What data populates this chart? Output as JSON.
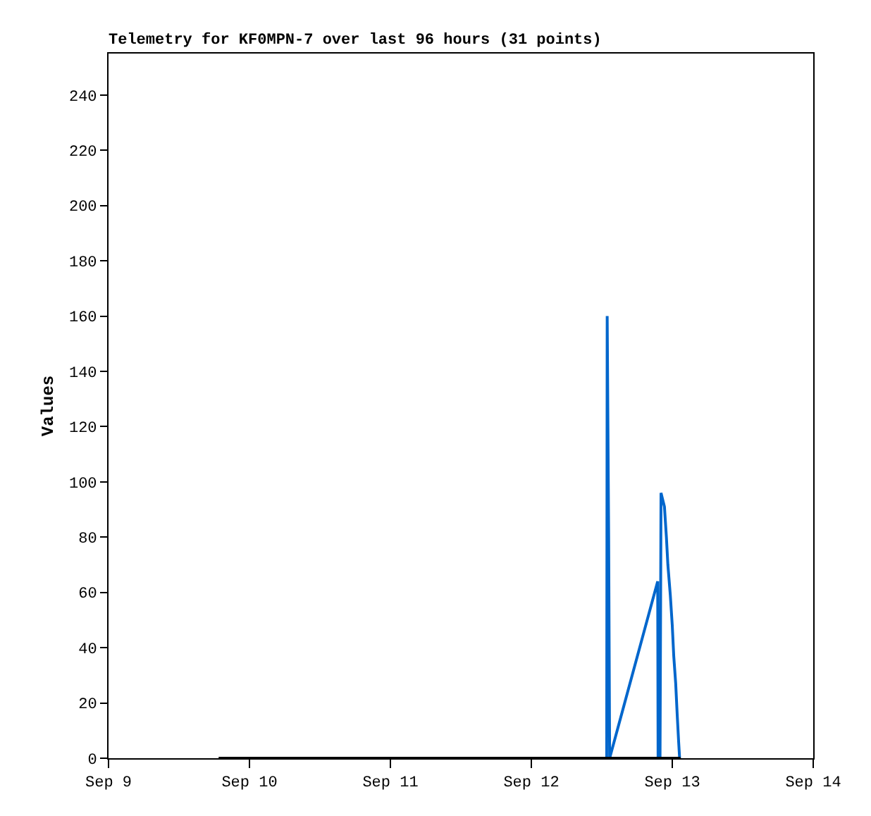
{
  "chart_data": {
    "type": "line",
    "title": "Telemetry for KF0MPN-7 over last 96 hours (31 points)",
    "ylabel": "Values",
    "series": [
      {
        "color": "#0066cc",
        "x": [
          "--09-12T12:50",
          "--09-12T12:55",
          "--09-12T13:10",
          "--09-12T13:20",
          "--09-12T21:31",
          "--09-12T21:35",
          "--09-12T21:55",
          "--09-12T22:05",
          "--09-12T22:40",
          "--09-12T23:00",
          "--09-12T23:15",
          "--09-12T23:40",
          "--09-13T00:00",
          "--09-13T00:15",
          "--09-13T00:35",
          "--09-13T00:50",
          "--09-13T01:05",
          "--09-13T01:15"
        ],
        "values": [
          0,
          160,
          80,
          0,
          64,
          0,
          0,
          96,
          91,
          80,
          70,
          59,
          48,
          37,
          27,
          16,
          6,
          0
        ]
      },
      {
        "color": "#000000",
        "x": [
          "--09-09T18:45",
          "--09-13T01:25"
        ],
        "values": [
          0,
          0
        ]
      }
    ],
    "xlim": [
      "--09-09",
      "--09-14"
    ],
    "xticks": [
      {
        "value": "--09-09",
        "label": "Sep 9"
      },
      {
        "value": "--09-10",
        "label": "Sep 10"
      },
      {
        "value": "--09-11",
        "label": "Sep 11"
      },
      {
        "value": "--09-12",
        "label": "Sep 12"
      },
      {
        "value": "--09-13",
        "label": "Sep 13"
      },
      {
        "value": "--09-14",
        "label": "Sep 14"
      }
    ],
    "ylim": [
      0,
      255
    ],
    "yticks": [
      0,
      20,
      40,
      60,
      80,
      100,
      120,
      140,
      160,
      180,
      200,
      220,
      240
    ],
    "marker": "none",
    "line_style": "solid"
  }
}
